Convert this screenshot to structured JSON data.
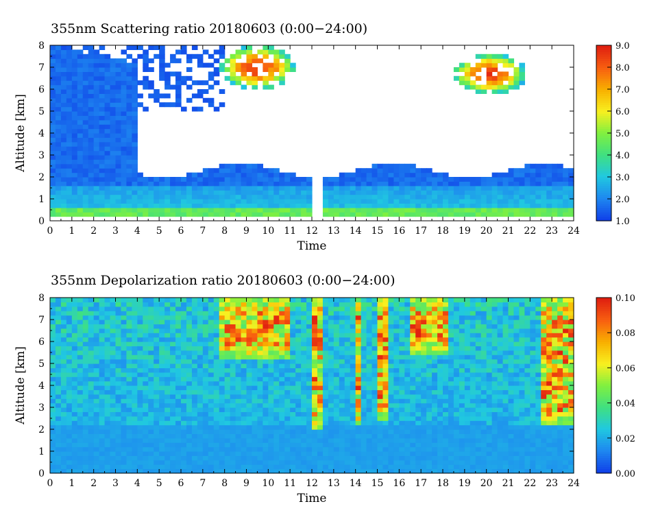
{
  "chart_data": [
    {
      "type": "heatmap",
      "title": "355nm Scattering ratio  20180603 (0:00−24:00)",
      "xlabel": "Time",
      "ylabel": "Altitude [km]",
      "xlim": [
        0,
        24
      ],
      "ylim": [
        0,
        8
      ],
      "x_ticks": [
        "0",
        "1",
        "2",
        "3",
        "4",
        "5",
        "6",
        "7",
        "8",
        "9",
        "10",
        "11",
        "12",
        "13",
        "14",
        "15",
        "16",
        "17",
        "18",
        "19",
        "20",
        "21",
        "22",
        "23",
        "24"
      ],
      "y_ticks": [
        "0",
        "1",
        "2",
        "3",
        "4",
        "5",
        "6",
        "7",
        "8"
      ],
      "colorbar": {
        "range": [
          1.0,
          9.0
        ],
        "ticks": [
          "1.0",
          "2.0",
          "3.0",
          "4.0",
          "5.0",
          "6.0",
          "7.0",
          "8.0",
          "9.0"
        ],
        "colors": [
          "#1040e8",
          "#1e88f0",
          "#20c8e0",
          "#40e080",
          "#80f040",
          "#f8f020",
          "#f8b000",
          "#f86010",
          "#e02010"
        ]
      },
      "features": {
        "boundary_layer_top_km": 2.3,
        "surface_layer_max_km": 0.6,
        "data_gap_hours": [
          11.9,
          12.5
        ],
        "clear_above_km": 2.5,
        "clouds": [
          {
            "x": [
              7.8,
              11.2
            ],
            "y": [
              6.0,
              8.0
            ],
            "value": 8.0
          },
          {
            "x": [
              18.5,
              21.8
            ],
            "y": [
              5.8,
              7.6
            ],
            "value": 8.0
          }
        ]
      }
    },
    {
      "type": "heatmap",
      "title": "355nm Depolarization ratio  20180603 (0:00−24:00)",
      "xlabel": "Time",
      "ylabel": "Altitude [km]",
      "xlim": [
        0,
        24
      ],
      "ylim": [
        0,
        8
      ],
      "x_ticks": [
        "0",
        "1",
        "2",
        "3",
        "4",
        "5",
        "6",
        "7",
        "8",
        "9",
        "10",
        "11",
        "12",
        "13",
        "14",
        "15",
        "16",
        "17",
        "18",
        "19",
        "20",
        "21",
        "22",
        "23",
        "24"
      ],
      "y_ticks": [
        "0",
        "1",
        "2",
        "3",
        "4",
        "5",
        "6",
        "7",
        "8"
      ],
      "colorbar": {
        "range": [
          0.0,
          0.1
        ],
        "ticks": [
          "0.00",
          "0.02",
          "0.04",
          "0.06",
          "0.08",
          "0.10"
        ],
        "colors": [
          "#1040e8",
          "#1e88f0",
          "#20c8e0",
          "#40e080",
          "#80f040",
          "#f8f020",
          "#f8b000",
          "#f86010",
          "#e02010"
        ]
      },
      "features": {
        "background_value": 0.015,
        "high_depol_regions": [
          {
            "x": [
              7.8,
              11.0
            ],
            "y": [
              5.3,
              8.0
            ]
          },
          {
            "x": [
              12.0,
              12.5
            ],
            "y": [
              2.0,
              8.0
            ]
          },
          {
            "x": [
              13.9,
              14.3
            ],
            "y": [
              2.2,
              8.0
            ]
          },
          {
            "x": [
              14.9,
              15.4
            ],
            "y": [
              2.5,
              8.0
            ]
          },
          {
            "x": [
              16.5,
              18.2
            ],
            "y": [
              5.5,
              8.0
            ]
          },
          {
            "x": [
              22.6,
              24.0
            ],
            "y": [
              2.2,
              8.0
            ]
          }
        ]
      }
    }
  ]
}
